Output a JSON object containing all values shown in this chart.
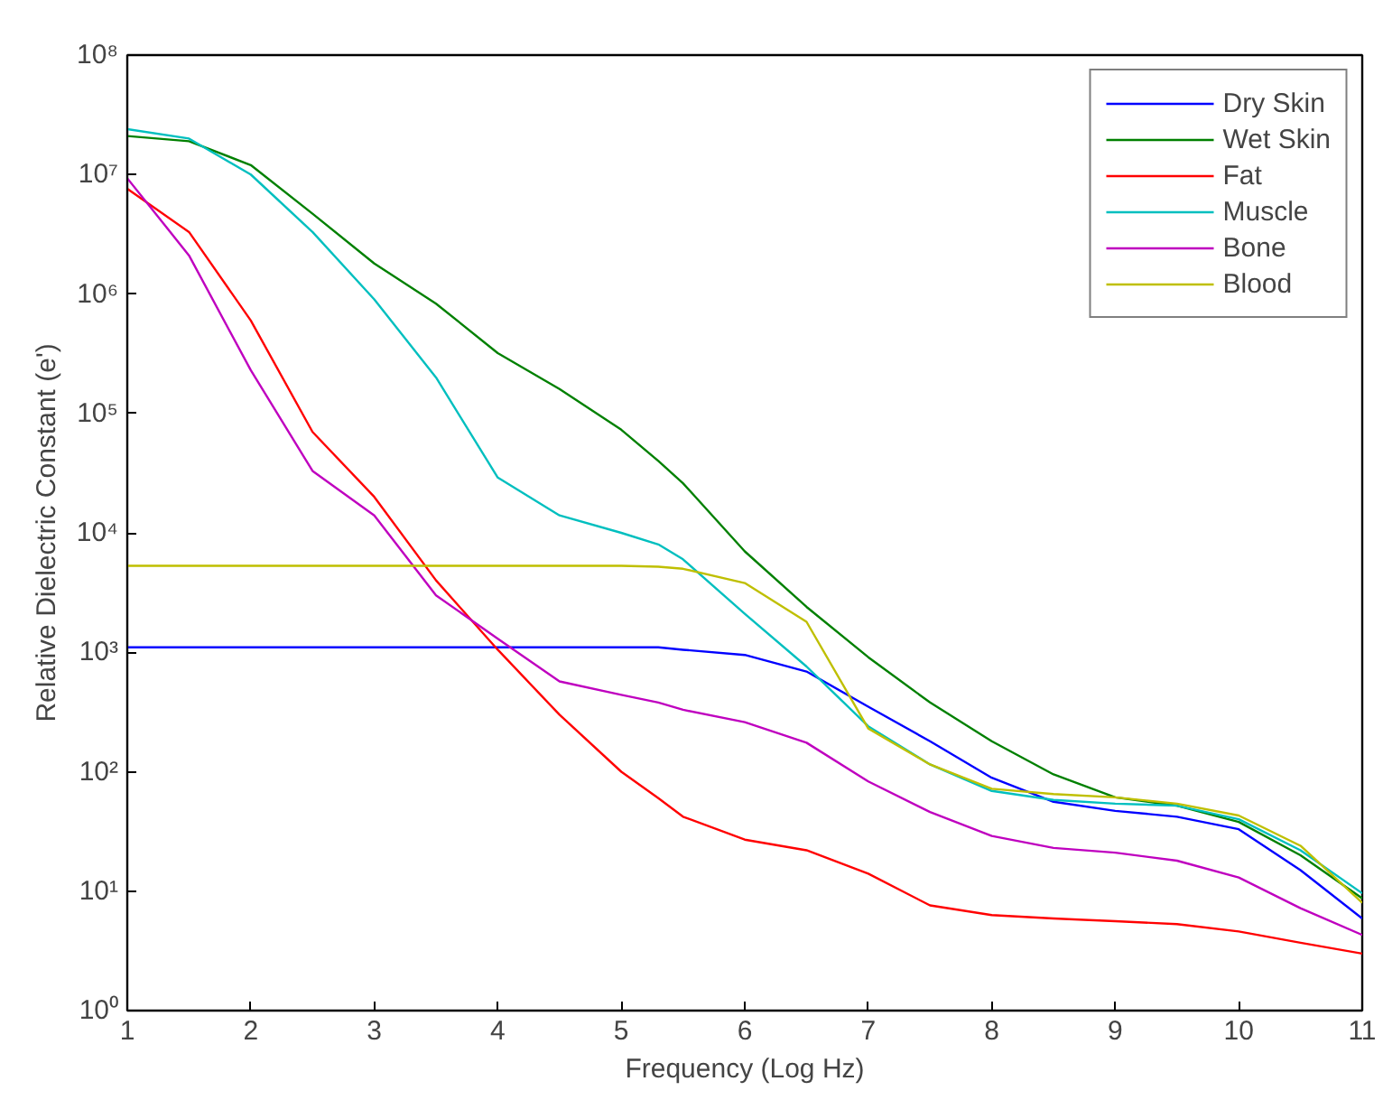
{
  "chart_data": {
    "type": "line",
    "xlabel": "Frequency (Log Hz)",
    "ylabel": "Relative Dielectric Constant (e')",
    "log": "y",
    "grid": false,
    "legend": "top right",
    "line_style": "solid",
    "marker": "none",
    "xlim": [
      1,
      11
    ],
    "xticks": [
      1,
      2,
      3,
      4,
      5,
      6,
      7,
      8,
      9,
      10,
      11
    ],
    "ylim": [
      1,
      100000000
    ],
    "yticks": [
      {
        "value": 1,
        "label": "10⁰"
      },
      {
        "value": 10,
        "label": "10¹"
      },
      {
        "value": 100,
        "label": "10²"
      },
      {
        "value": 1000,
        "label": "10³"
      },
      {
        "value": 10000,
        "label": "10⁴"
      },
      {
        "value": 100000,
        "label": "10⁵"
      },
      {
        "value": 1000000,
        "label": "10⁶"
      },
      {
        "value": 10000000,
        "label": "10⁷"
      },
      {
        "value": 100000000,
        "label": "10⁸"
      }
    ],
    "x": [
      1,
      1.5,
      2,
      2.5,
      3,
      3.5,
      4,
      4.5,
      5,
      5.3,
      5.5,
      6,
      6.5,
      7,
      7.5,
      8,
      8.5,
      9,
      9.5,
      10,
      10.5,
      11
    ],
    "series": [
      {
        "name": "Dry Skin",
        "color": "#0000ff",
        "values": [
          1100,
          1100,
          1100,
          1100,
          1100,
          1100,
          1100,
          1100,
          1100,
          1100,
          1050,
          950,
          690,
          350,
          180,
          89,
          56,
          47,
          42,
          33,
          15,
          5.9
        ]
      },
      {
        "name": "Wet Skin",
        "color": "#008000",
        "values": [
          21000000,
          19000000,
          12000000,
          4700000,
          1800000,
          830000,
          320000,
          160000,
          73000,
          40000,
          26000,
          7000,
          2400,
          910,
          380,
          180,
          95,
          61,
          52,
          38,
          20,
          8.7
        ]
      },
      {
        "name": "Fat",
        "color": "#ff0000",
        "values": [
          7600000,
          3300000,
          600000,
          70000,
          20000,
          4000,
          1050,
          300,
          100,
          60,
          42,
          27,
          22,
          14,
          7.6,
          6.3,
          5.9,
          5.6,
          5.3,
          4.6,
          3.7,
          3.0
        ]
      },
      {
        "name": "Muscle",
        "color": "#00bfbf",
        "values": [
          24000000,
          20000000,
          10000000,
          3300000,
          900000,
          200000,
          29000,
          14000,
          10000,
          8000,
          6000,
          2100,
          760,
          240,
          115,
          69,
          58,
          54,
          52,
          40,
          22,
          9.6
        ]
      },
      {
        "name": "Bone",
        "color": "#bf00bf",
        "values": [
          9300000,
          2100000,
          230000,
          33000,
          14000,
          3000,
          1300,
          570,
          440,
          380,
          330,
          260,
          175,
          83,
          46,
          29,
          23,
          21,
          18,
          13,
          7.2,
          4.3
        ]
      },
      {
        "name": "Blood",
        "color": "#bfbf00",
        "values": [
          5300,
          5300,
          5300,
          5300,
          5300,
          5300,
          5300,
          5300,
          5300,
          5200,
          5000,
          3800,
          1800,
          230,
          115,
          72,
          65,
          61,
          54,
          43,
          24,
          8
        ]
      }
    ]
  }
}
